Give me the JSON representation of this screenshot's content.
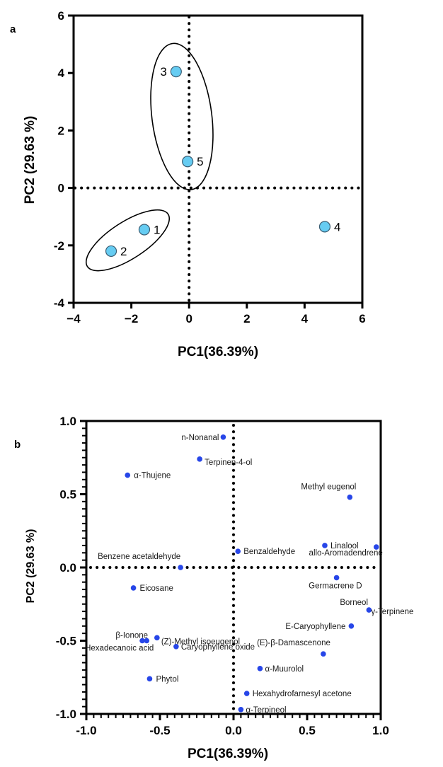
{
  "chart_data": [
    {
      "panel": "a",
      "type": "scatter",
      "xlabel": "PC1(36.39%)",
      "ylabel": "PC2 (29.63 %)",
      "xlim": [
        -4,
        6
      ],
      "ylim": [
        -4,
        6
      ],
      "x_ticks": [
        -4,
        -2,
        0,
        2,
        4,
        6
      ],
      "y_ticks": [
        -4,
        -2,
        0,
        2,
        4,
        6
      ],
      "x_tick_labels": [
        "−4",
        "−2",
        "0",
        "2",
        "4",
        "6"
      ],
      "y_tick_labels": [
        "-4",
        "-2",
        "0",
        "2",
        "4",
        "6"
      ],
      "point_color": "#66ccf2",
      "points": [
        {
          "label": "1",
          "x": -1.55,
          "y": -1.45
        },
        {
          "label": "2",
          "x": -2.7,
          "y": -2.2
        },
        {
          "label": "3",
          "x": -0.45,
          "y": 4.05
        },
        {
          "label": "4",
          "x": 4.7,
          "y": -1.35
        },
        {
          "label": "5",
          "x": -0.05,
          "y": 0.92
        }
      ],
      "groups": [
        [
          "3",
          "5"
        ],
        [
          "1",
          "2"
        ]
      ]
    },
    {
      "panel": "b",
      "type": "scatter",
      "xlabel": "PC1(36.39%)",
      "ylabel": "PC2 (29.63 %)",
      "xlim": [
        -1.0,
        1.0
      ],
      "ylim": [
        -1.0,
        1.0
      ],
      "x_ticks": [
        -1.0,
        -0.5,
        0.0,
        0.5,
        1.0
      ],
      "y_ticks": [
        -1.0,
        -0.5,
        0.0,
        0.5,
        1.0
      ],
      "x_tick_labels": [
        "-1.0",
        "-0.5",
        "0.0",
        "0.5",
        "1.0"
      ],
      "y_tick_labels": [
        "-1.0",
        "-0.5",
        "0.0",
        "0.5",
        "1.0"
      ],
      "point_color": "#2746e8",
      "points": [
        {
          "label": "n-Nonanal",
          "x": -0.07,
          "y": 0.89
        },
        {
          "label": "Terpinen-4-ol",
          "x": -0.23,
          "y": 0.74
        },
        {
          "label": "α-Thujene",
          "x": -0.72,
          "y": 0.63
        },
        {
          "label": "Methyl eugenol",
          "x": 0.79,
          "y": 0.48
        },
        {
          "label": "Benzaldehyde",
          "x": 0.03,
          "y": 0.11
        },
        {
          "label": "Linalool",
          "x": 0.62,
          "y": 0.15
        },
        {
          "label": "allo-Aromadendrene",
          "x": 0.97,
          "y": 0.14
        },
        {
          "label": "Benzene acetaldehyde",
          "x": -0.36,
          "y": 0.0
        },
        {
          "label": "Eicosane",
          "x": -0.68,
          "y": -0.14
        },
        {
          "label": "Germacrene D",
          "x": 0.7,
          "y": -0.07
        },
        {
          "label": "Borneol",
          "x": 0.92,
          "y": -0.29
        },
        {
          "label": "γ-Terpinene",
          "x": 0.92,
          "y": -0.29
        },
        {
          "label": "(Z)-Methyl isoeugenol",
          "x": -0.52,
          "y": -0.48
        },
        {
          "label": "E-Caryophyllene",
          "x": 0.8,
          "y": -0.4
        },
        {
          "label": "β-Ionone",
          "x": -0.62,
          "y": -0.5
        },
        {
          "label": "Hexadecanoic acid",
          "x": -0.59,
          "y": -0.5
        },
        {
          "label": "Caryophyllene oxide",
          "x": -0.39,
          "y": -0.54
        },
        {
          "label": "(E)-β-Damascenone",
          "x": 0.61,
          "y": -0.59
        },
        {
          "label": "α-Muurolol",
          "x": 0.18,
          "y": -0.69
        },
        {
          "label": "Phytol",
          "x": -0.57,
          "y": -0.76
        },
        {
          "label": "Hexahydrofarnesyl acetone",
          "x": 0.09,
          "y": -0.86
        },
        {
          "label": "α-Terpineol",
          "x": 0.05,
          "y": -0.97
        }
      ]
    }
  ],
  "panel_a": {
    "tag": "a"
  },
  "panel_b": {
    "tag": "b"
  }
}
